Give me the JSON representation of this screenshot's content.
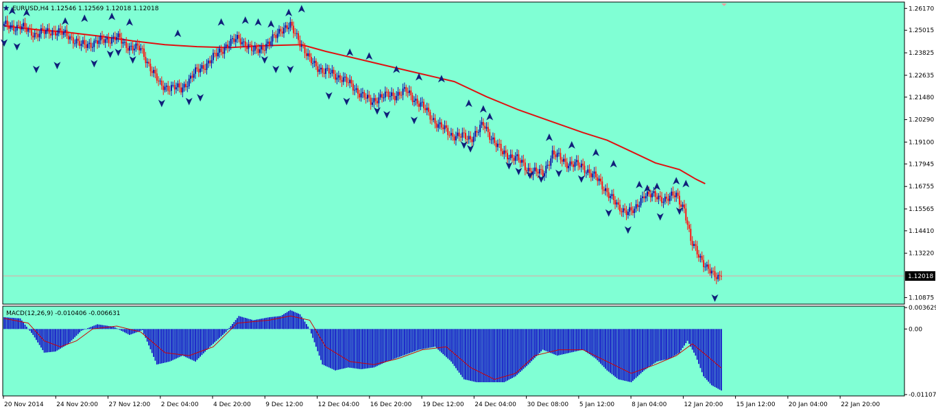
{
  "chart_data": {
    "type": "candlestick",
    "symbol_header": "EURUSD,H4  1.12546 1.12569 1.12018 1.12018",
    "price_axis": {
      "range": [
        1.106,
        1.264
      ],
      "ticks": [
        "1.26170",
        "1.25015",
        "1.23825",
        "1.22635",
        "1.21480",
        "1.20290",
        "1.19100",
        "1.17945",
        "1.16755",
        "1.15565",
        "1.14410",
        "1.13220",
        "1.10875"
      ],
      "current_price": "1.12018",
      "current_value": 1.12018
    },
    "time_axis": {
      "labels": [
        "20 Nov 2014",
        "24 Nov 20:00",
        "27 Nov 12:00",
        "2 Dec 04:00",
        "4 Dec 20:00",
        "9 Dec 12:00",
        "12 Dec 04:00",
        "16 Dec 20:00",
        "19 Dec 12:00",
        "24 Dec 04:00",
        "30 Dec 08:00",
        "5 Jan 12:00",
        "8 Jan 04:00",
        "12 Jan 20:00",
        "15 Jan 12:00",
        "20 Jan 04:00",
        "22 Jan 20:00"
      ]
    },
    "price_path": [
      [
        0,
        1.2525
      ],
      [
        10,
        1.252
      ],
      [
        20,
        1.248
      ],
      [
        30,
        1.25
      ],
      [
        40,
        1.2475
      ],
      [
        48,
        1.242
      ],
      [
        58,
        1.244
      ],
      [
        70,
        1.2465
      ],
      [
        75,
        1.2425
      ],
      [
        85,
        1.24
      ],
      [
        97,
        1.221
      ],
      [
        110,
        1.219
      ],
      [
        118,
        1.227
      ],
      [
        128,
        1.234
      ],
      [
        138,
        1.242
      ],
      [
        146,
        1.246
      ],
      [
        155,
        1.239
      ],
      [
        165,
        1.243
      ],
      [
        172,
        1.251
      ],
      [
        178,
        1.252
      ],
      [
        183,
        1.246
      ],
      [
        190,
        1.234
      ],
      [
        198,
        1.229
      ],
      [
        210,
        1.225
      ],
      [
        220,
        1.218
      ],
      [
        228,
        1.212
      ],
      [
        233,
        1.215
      ],
      [
        243,
        1.216
      ],
      [
        250,
        1.218
      ],
      [
        260,
        1.21
      ],
      [
        270,
        1.2
      ],
      [
        278,
        1.195
      ],
      [
        290,
        1.193
      ],
      [
        298,
        1.2
      ],
      [
        310,
        1.185
      ],
      [
        318,
        1.183
      ],
      [
        325,
        1.177
      ],
      [
        335,
        1.174
      ],
      [
        341,
        1.185
      ],
      [
        350,
        1.18
      ],
      [
        360,
        1.178
      ],
      [
        368,
        1.172
      ],
      [
        375,
        1.165
      ],
      [
        382,
        1.156
      ],
      [
        392,
        1.154
      ],
      [
        398,
        1.164
      ],
      [
        405,
        1.162
      ],
      [
        412,
        1.161
      ],
      [
        418,
        1.163
      ],
      [
        423,
        1.156
      ],
      [
        427,
        1.138
      ],
      [
        432,
        1.132
      ],
      [
        437,
        1.124
      ],
      [
        441,
        1.1205
      ],
      [
        446,
        1.1202
      ]
    ],
    "moving_average": [
      [
        0,
        1.2525
      ],
      [
        20,
        1.2505
      ],
      [
        40,
        1.249
      ],
      [
        60,
        1.247
      ],
      [
        80,
        1.2445
      ],
      [
        100,
        1.2425
      ],
      [
        120,
        1.2415
      ],
      [
        140,
        1.241
      ],
      [
        160,
        1.242
      ],
      [
        185,
        1.2425
      ],
      [
        200,
        1.239
      ],
      [
        220,
        1.235
      ],
      [
        240,
        1.231
      ],
      [
        260,
        1.227
      ],
      [
        280,
        1.223
      ],
      [
        300,
        1.215
      ],
      [
        320,
        1.208
      ],
      [
        340,
        1.202
      ],
      [
        360,
        1.196
      ],
      [
        375,
        1.192
      ],
      [
        390,
        1.186
      ],
      [
        405,
        1.18
      ],
      [
        420,
        1.1765
      ],
      [
        430,
        1.1715
      ],
      [
        436,
        1.169
      ]
    ],
    "fractals": {
      "up": [
        [
          5,
          1.26
        ],
        [
          14,
          1.259
        ],
        [
          38,
          1.2545
        ],
        [
          50,
          1.256
        ],
        [
          67,
          1.257
        ],
        [
          78,
          1.254
        ],
        [
          108,
          1.248
        ],
        [
          135,
          1.254
        ],
        [
          150,
          1.255
        ],
        [
          158,
          1.254
        ],
        [
          166,
          1.253
        ],
        [
          177,
          1.259
        ],
        [
          185,
          1.261
        ],
        [
          215,
          1.238
        ],
        [
          227,
          1.236
        ],
        [
          244,
          1.229
        ],
        [
          258,
          1.225
        ],
        [
          272,
          1.224
        ],
        [
          289,
          1.211
        ],
        [
          298,
          1.208
        ],
        [
          302,
          1.204
        ],
        [
          339,
          1.193
        ],
        [
          353,
          1.189
        ],
        [
          368,
          1.185
        ],
        [
          379,
          1.179
        ],
        [
          395,
          1.168
        ],
        [
          400,
          1.166
        ],
        [
          406,
          1.167
        ],
        [
          418,
          1.17
        ],
        [
          424,
          1.1685
        ]
      ],
      "down": [
        [
          0,
          1.244
        ],
        [
          8,
          1.242
        ],
        [
          20,
          1.23
        ],
        [
          33,
          1.232
        ],
        [
          56,
          1.233
        ],
        [
          66,
          1.238
        ],
        [
          71,
          1.239
        ],
        [
          80,
          1.235
        ],
        [
          98,
          1.212
        ],
        [
          115,
          1.213
        ],
        [
          122,
          1.215
        ],
        [
          162,
          1.235
        ],
        [
          169,
          1.23
        ],
        [
          178,
          1.23
        ],
        [
          202,
          1.216
        ],
        [
          213,
          1.213
        ],
        [
          232,
          1.208
        ],
        [
          238,
          1.206
        ],
        [
          255,
          1.203
        ],
        [
          286,
          1.19
        ],
        [
          290,
          1.188
        ],
        [
          314,
          1.179
        ],
        [
          320,
          1.176
        ],
        [
          327,
          1.174
        ],
        [
          334,
          1.172
        ],
        [
          345,
          1.175
        ],
        [
          359,
          1.172
        ],
        [
          376,
          1.154
        ],
        [
          388,
          1.145
        ],
        [
          408,
          1.152
        ],
        [
          420,
          1.155
        ],
        [
          442,
          1.109
        ]
      ]
    },
    "macd": {
      "label": "MACD(12,26,9) -0.010406 -0.006631",
      "range": [
        -0.011075,
        0.003629
      ],
      "ticks": [
        "0.003629",
        "0.00",
        "-0.011075"
      ],
      "histogram_path": [
        [
          0,
          0.002
        ],
        [
          10,
          0.0018
        ],
        [
          18,
          -0.001
        ],
        [
          25,
          -0.004
        ],
        [
          32,
          -0.0038
        ],
        [
          40,
          -0.0025
        ],
        [
          48,
          -0.0003
        ],
        [
          58,
          0.0008
        ],
        [
          68,
          0.0004
        ],
        [
          78,
          -0.001
        ],
        [
          86,
          -0.0002
        ],
        [
          95,
          -0.006
        ],
        [
          103,
          -0.0055
        ],
        [
          111,
          -0.0045
        ],
        [
          119,
          -0.0055
        ],
        [
          128,
          -0.003
        ],
        [
          138,
          -0.0005
        ],
        [
          146,
          0.0022
        ],
        [
          155,
          0.0015
        ],
        [
          165,
          0.002
        ],
        [
          172,
          0.0022
        ],
        [
          178,
          0.0032
        ],
        [
          184,
          0.0025
        ],
        [
          190,
          0.0
        ],
        [
          198,
          -0.006
        ],
        [
          206,
          -0.007
        ],
        [
          214,
          -0.0065
        ],
        [
          222,
          -0.0068
        ],
        [
          230,
          -0.0065
        ],
        [
          238,
          -0.0055
        ],
        [
          248,
          -0.0045
        ],
        [
          258,
          -0.0035
        ],
        [
          268,
          -0.003
        ],
        [
          278,
          -0.0055
        ],
        [
          286,
          -0.0085
        ],
        [
          294,
          -0.009
        ],
        [
          303,
          -0.009
        ],
        [
          311,
          -0.009
        ],
        [
          318,
          -0.008
        ],
        [
          326,
          -0.006
        ],
        [
          335,
          -0.0035
        ],
        [
          344,
          -0.0045
        ],
        [
          352,
          -0.004
        ],
        [
          360,
          -0.0035
        ],
        [
          368,
          -0.005
        ],
        [
          375,
          -0.007
        ],
        [
          382,
          -0.0085
        ],
        [
          390,
          -0.009
        ],
        [
          398,
          -0.007
        ],
        [
          406,
          -0.0055
        ],
        [
          414,
          -0.005
        ],
        [
          420,
          -0.004
        ],
        [
          425,
          -0.002
        ],
        [
          430,
          -0.0045
        ],
        [
          435,
          -0.008
        ],
        [
          440,
          -0.0095
        ],
        [
          446,
          -0.0104
        ]
      ],
      "signal_path": [
        [
          0,
          0.0018
        ],
        [
          15,
          0.001
        ],
        [
          25,
          -0.002
        ],
        [
          35,
          -0.003
        ],
        [
          45,
          -0.002
        ],
        [
          55,
          0.0
        ],
        [
          70,
          0.0005
        ],
        [
          85,
          -0.0005
        ],
        [
          100,
          -0.004
        ],
        [
          115,
          -0.0045
        ],
        [
          130,
          -0.003
        ],
        [
          145,
          0.001
        ],
        [
          165,
          0.0015
        ],
        [
          178,
          0.0022
        ],
        [
          190,
          0.0015
        ],
        [
          200,
          -0.003
        ],
        [
          215,
          -0.0055
        ],
        [
          230,
          -0.006
        ],
        [
          245,
          -0.005
        ],
        [
          260,
          -0.0035
        ],
        [
          275,
          -0.003
        ],
        [
          290,
          -0.0065
        ],
        [
          305,
          -0.0085
        ],
        [
          318,
          -0.0075
        ],
        [
          330,
          -0.0045
        ],
        [
          345,
          -0.0035
        ],
        [
          360,
          -0.0035
        ],
        [
          375,
          -0.0055
        ],
        [
          390,
          -0.0075
        ],
        [
          405,
          -0.006
        ],
        [
          418,
          -0.0045
        ],
        [
          428,
          -0.0025
        ],
        [
          437,
          -0.0045
        ],
        [
          446,
          -0.0066
        ]
      ]
    },
    "colors": {
      "background": "#80ffd4",
      "bull": "#1010a8",
      "bear": "#ff1010",
      "ma": "#e01010",
      "fractal": "#10207a",
      "histogram": "#1414c8",
      "signal": "#d00000",
      "price_line": "#e8a0a0"
    }
  }
}
